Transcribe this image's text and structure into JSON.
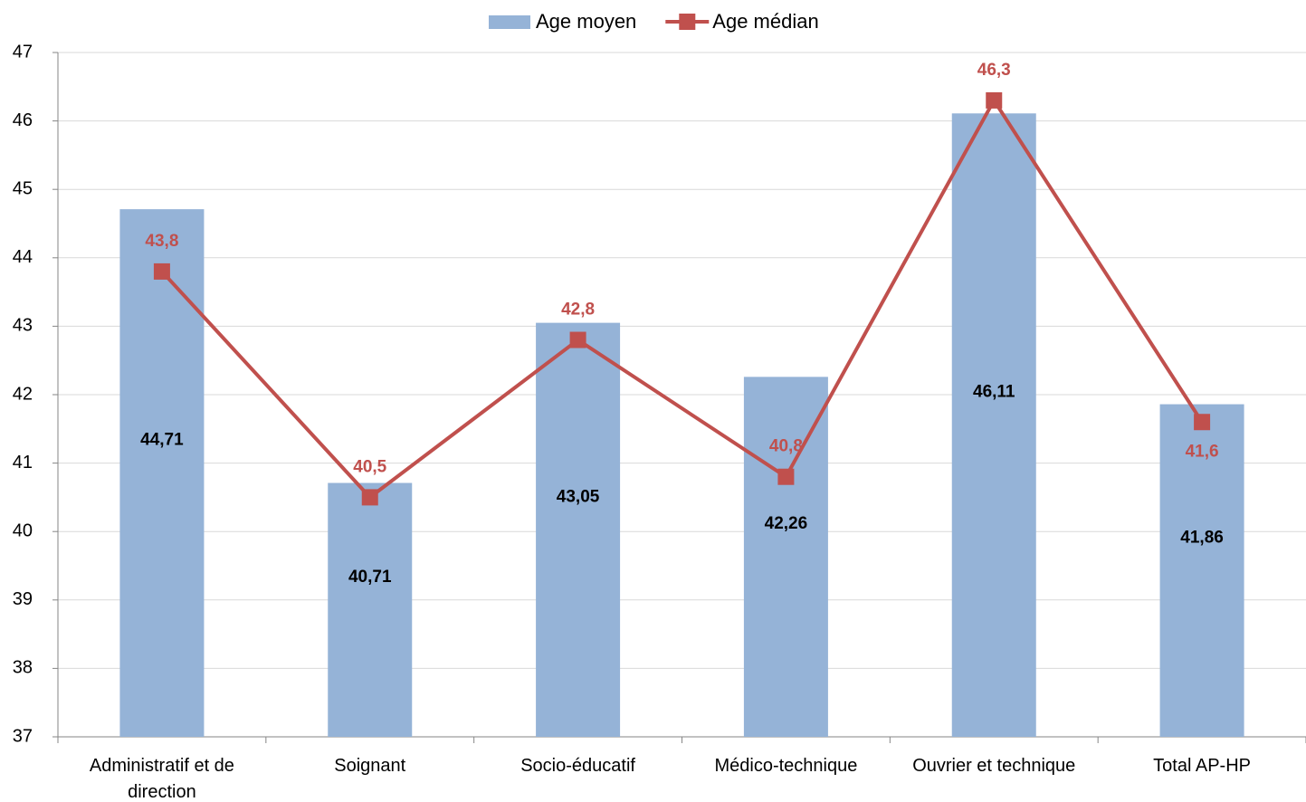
{
  "chart_data": {
    "type": "bar",
    "categories": [
      "Administratif et de direction",
      "Soignant",
      "Socio-éducatif",
      "Médico-technique",
      "Ouvrier et technique",
      "Total AP-HP"
    ],
    "series": [
      {
        "name": "Age moyen",
        "type": "bar",
        "color": "#95b3d7",
        "values": [
          44.71,
          40.71,
          43.05,
          42.26,
          46.11,
          41.86
        ],
        "value_labels": [
          "44,71",
          "40,71",
          "43,05",
          "42,26",
          "46,11",
          "41,86"
        ]
      },
      {
        "name": "Age médian",
        "type": "line",
        "color": "#c0504d",
        "values": [
          43.8,
          40.5,
          42.8,
          40.8,
          46.3,
          41.6
        ],
        "value_labels": [
          "43,8",
          "40,5",
          "42,8",
          "40,8",
          "46,3",
          "41,6"
        ]
      }
    ],
    "ylim": [
      37,
      47
    ],
    "yticks": [
      37,
      38,
      39,
      40,
      41,
      42,
      43,
      44,
      45,
      46,
      47
    ],
    "grid": true,
    "legend": "top"
  }
}
